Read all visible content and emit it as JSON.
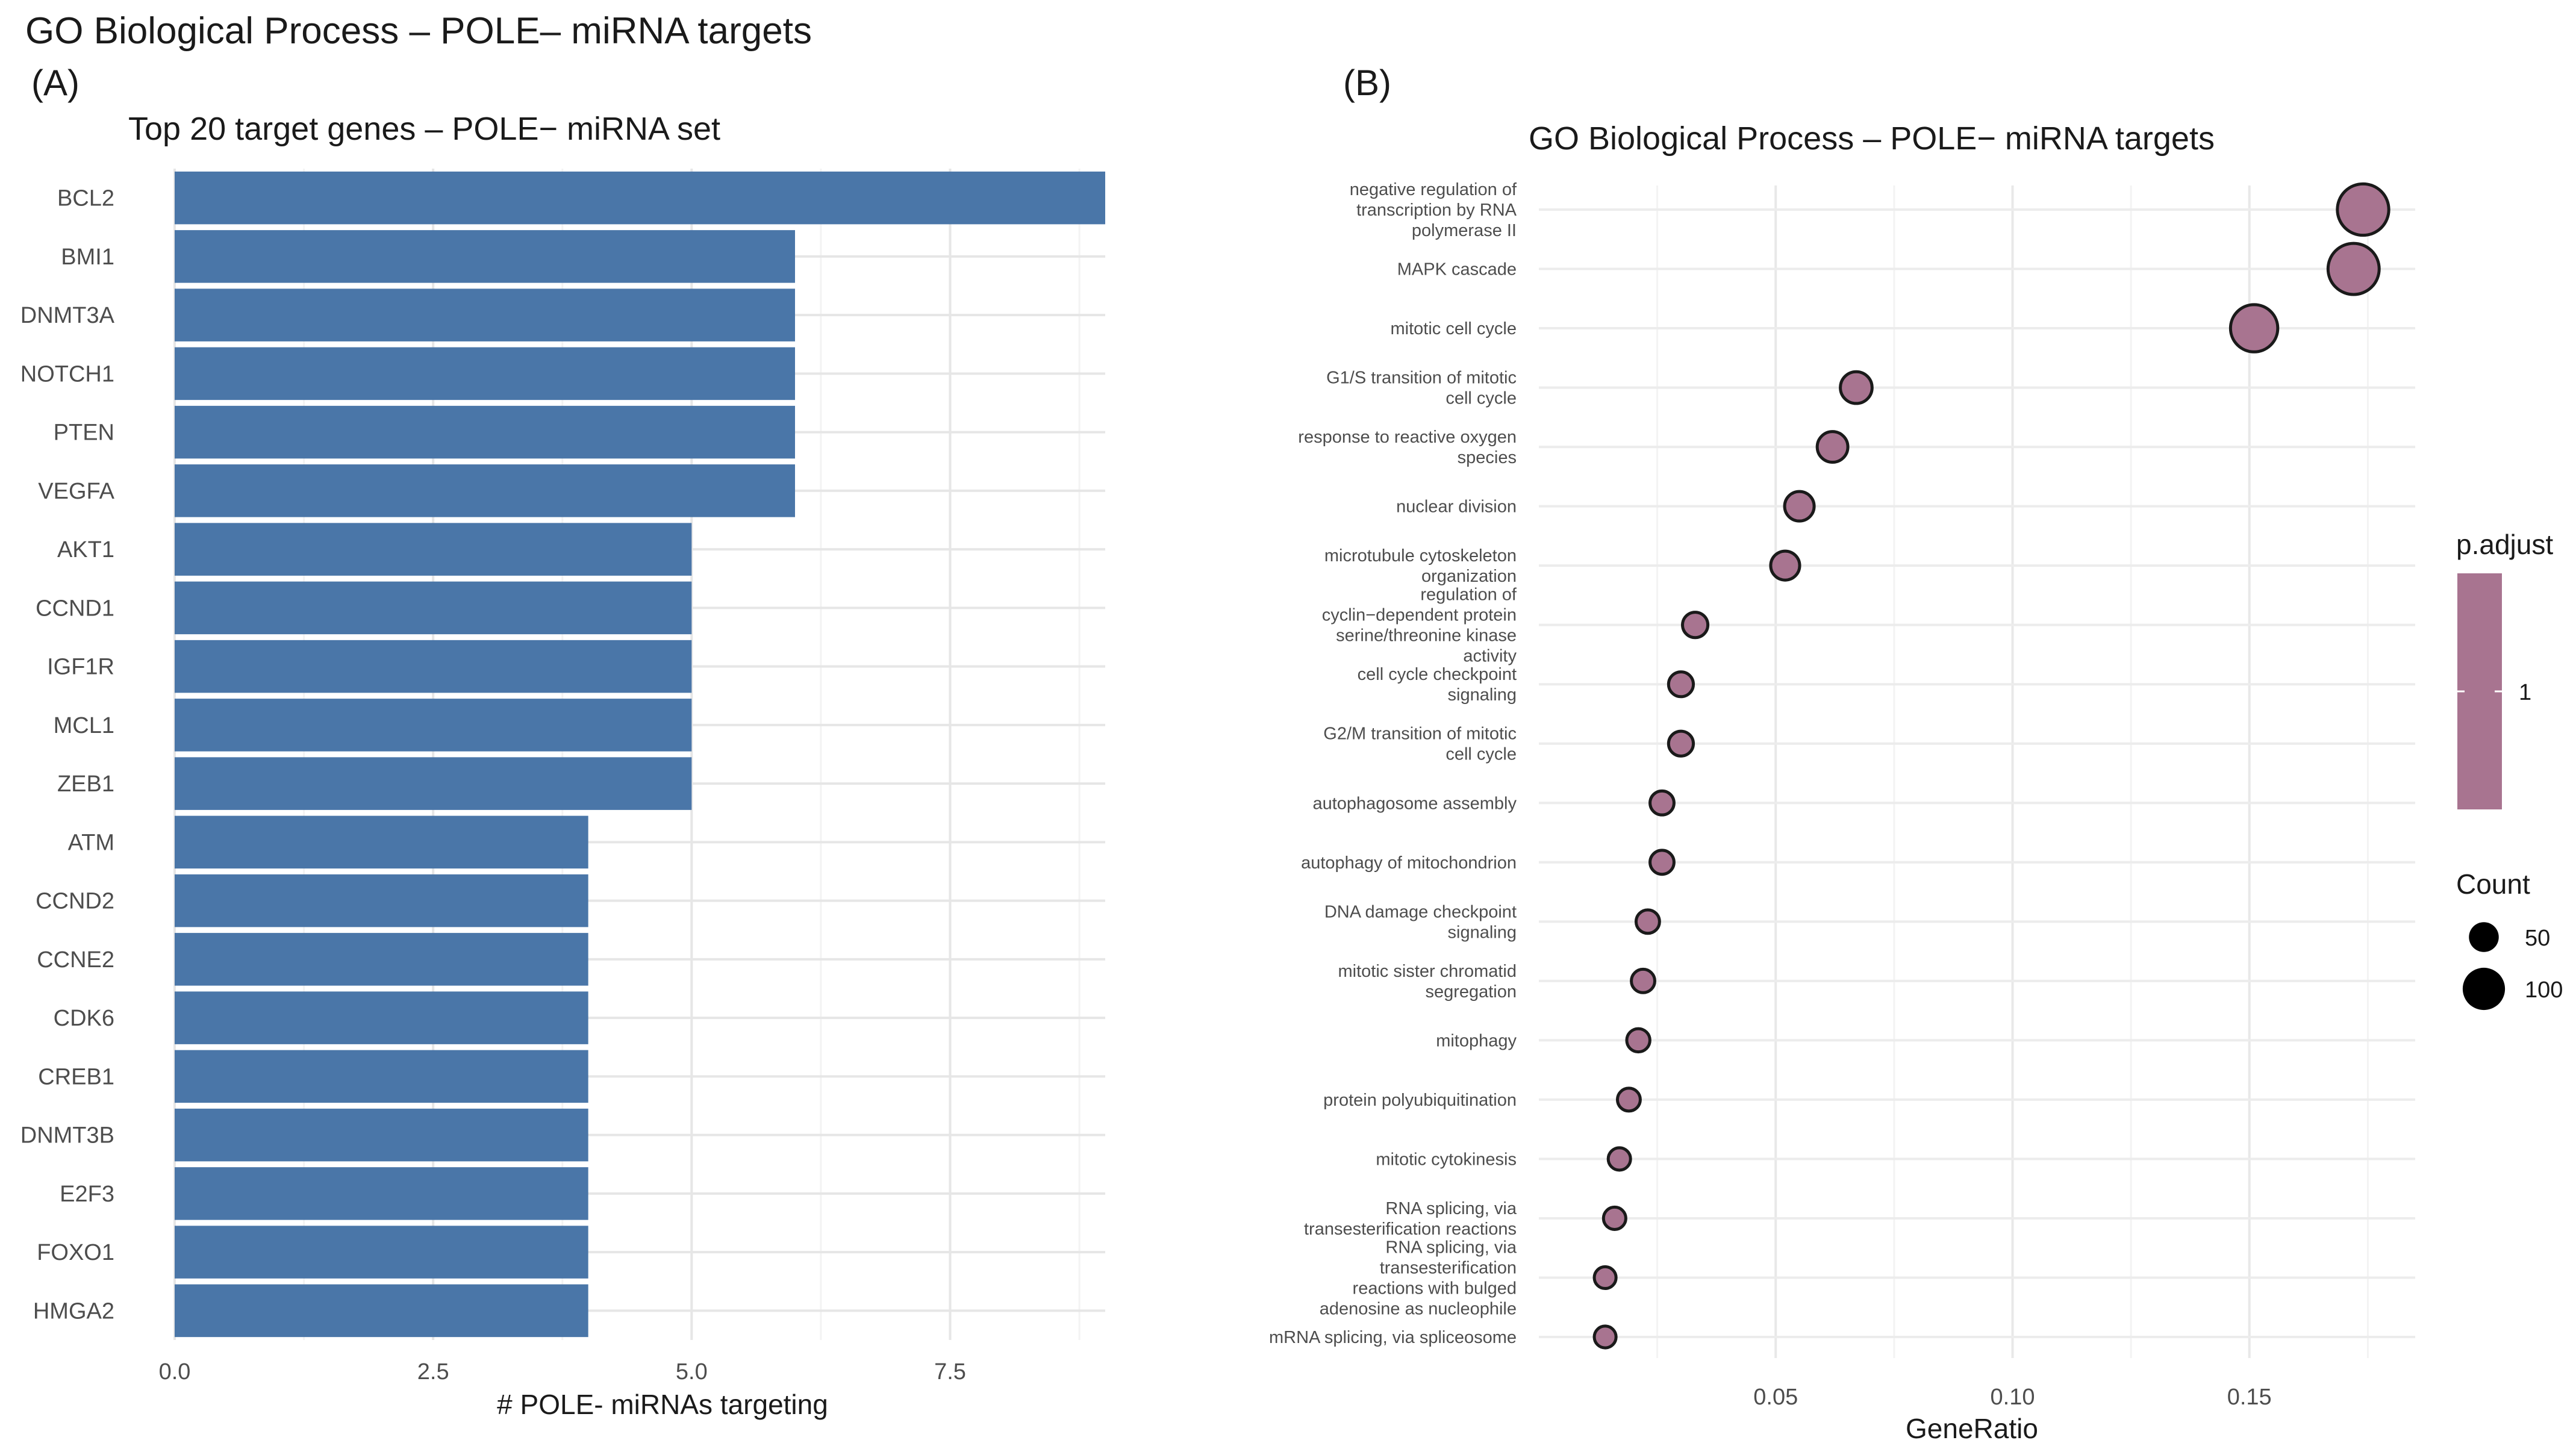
{
  "figure_title": "GO Biological Process – POLE– miRNA targets",
  "panel_a_label": "(A)",
  "panel_b_label": "(B)",
  "chart_data": [
    {
      "type": "bar",
      "orientation": "horizontal",
      "title": "Top 20 target genes – POLE− miRNA set",
      "xlabel": "# POLE- miRNAs targeting",
      "ylabel": "",
      "xlim": [
        0,
        9
      ],
      "xticks": [
        0,
        2.5,
        5,
        7.5
      ],
      "xtick_labels": [
        "0.0",
        "2.5",
        "5.0",
        "7.5"
      ],
      "grid": true,
      "bar_color": "#4a76a8",
      "categories": [
        "BCL2",
        "BMI1",
        "DNMT3A",
        "NOTCH1",
        "PTEN",
        "VEGFA",
        "AKT1",
        "CCND1",
        "IGF1R",
        "MCL1",
        "ZEB1",
        "ATM",
        "CCND2",
        "CCNE2",
        "CDK6",
        "CREB1",
        "DNMT3B",
        "E2F3",
        "FOXO1",
        "HMGA2"
      ],
      "values": [
        9,
        6,
        6,
        6,
        6,
        6,
        5,
        5,
        5,
        5,
        5,
        4,
        4,
        4,
        4,
        4,
        4,
        4,
        4,
        4
      ]
    },
    {
      "type": "scatter",
      "title": "GO Biological Process – POLE− miRNA targets",
      "xlabel": "GeneRatio",
      "ylabel": "",
      "xlim": [
        0,
        0.185
      ],
      "xticks": [
        0.05,
        0.1,
        0.15
      ],
      "xtick_labels": [
        "0.05",
        "0.10",
        "0.15"
      ],
      "grid": true,
      "point_color": "#a87490",
      "categories": [
        [
          "negative regulation of",
          "transcription by RNA",
          "polymerase II"
        ],
        [
          "MAPK cascade"
        ],
        [
          "mitotic cell cycle"
        ],
        [
          "G1/S transition of mitotic",
          "cell cycle"
        ],
        [
          "response to reactive oxygen",
          "species"
        ],
        [
          "nuclear division"
        ],
        [
          "microtubule cytoskeleton",
          "organization"
        ],
        [
          "regulation of",
          "cyclin−dependent protein",
          "serine/threonine kinase",
          "activity"
        ],
        [
          "cell cycle checkpoint",
          "signaling"
        ],
        [
          "G2/M transition of mitotic",
          "cell cycle"
        ],
        [
          "autophagosome assembly"
        ],
        [
          "autophagy of mitochondrion"
        ],
        [
          "DNA damage checkpoint",
          "signaling"
        ],
        [
          "mitotic sister chromatid",
          "segregation"
        ],
        [
          "mitophagy"
        ],
        [
          "protein polyubiquitination"
        ],
        [
          "mitotic cytokinesis"
        ],
        [
          "RNA splicing, via",
          "transesterification reactions"
        ],
        [
          "RNA splicing, via",
          "transesterification",
          "reactions with bulged",
          "adenosine as nucleophile"
        ],
        [
          "mRNA splicing, via spliceosome"
        ]
      ],
      "gene_ratio": [
        0.174,
        0.172,
        0.151,
        0.067,
        0.062,
        0.055,
        0.052,
        0.033,
        0.03,
        0.03,
        0.026,
        0.026,
        0.023,
        0.022,
        0.021,
        0.019,
        0.017,
        0.016,
        0.014,
        0.014
      ],
      "count": [
        116,
        115,
        101,
        45,
        41,
        37,
        35,
        22,
        20,
        20,
        17,
        17,
        15,
        15,
        14,
        13,
        11,
        11,
        9,
        9
      ],
      "legend": {
        "placement": "right",
        "color_title": "p.adjust",
        "color_tick": "1",
        "size_title": "Count",
        "size_entries": [
          50,
          100
        ],
        "size_labels": [
          "50",
          "100"
        ]
      }
    }
  ]
}
